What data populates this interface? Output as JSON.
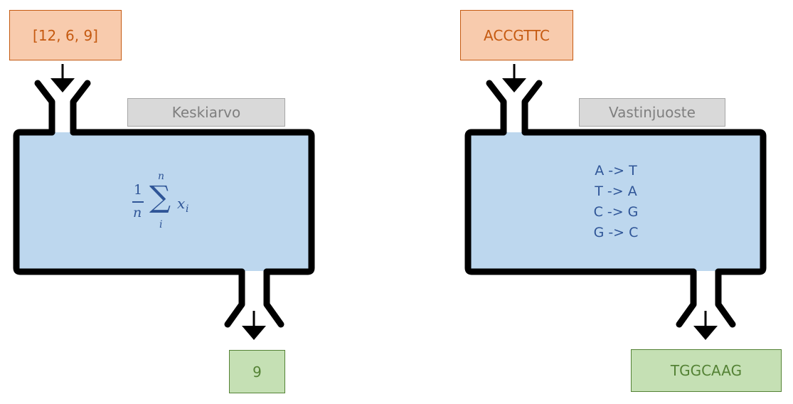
{
  "left_machine": {
    "input": "[12, 6, 9]",
    "label": "Keskiarvo",
    "formula": {
      "numerator": "1",
      "denominator": "n",
      "sum_upper": "n",
      "sum_lower": "i",
      "sum_symbol": "∑",
      "term_base": "x",
      "term_sub": "i"
    },
    "output": "9"
  },
  "right_machine": {
    "input": "ACCGTTC",
    "label": "Vastinjuoste",
    "rules": [
      "A -> T",
      "T -> A",
      "C -> G",
      "G -> C"
    ],
    "output": "TGGCAAG"
  },
  "colors": {
    "machine_fill": "#bdd7ee",
    "outline": "#000000",
    "input_fill": "#f8cbad",
    "input_text": "#c55a11",
    "output_fill": "#c5e0b4",
    "output_text": "#548235",
    "label_fill": "#d9d9d9",
    "label_text": "#7f7f7f",
    "content_text": "#2f5597"
  }
}
